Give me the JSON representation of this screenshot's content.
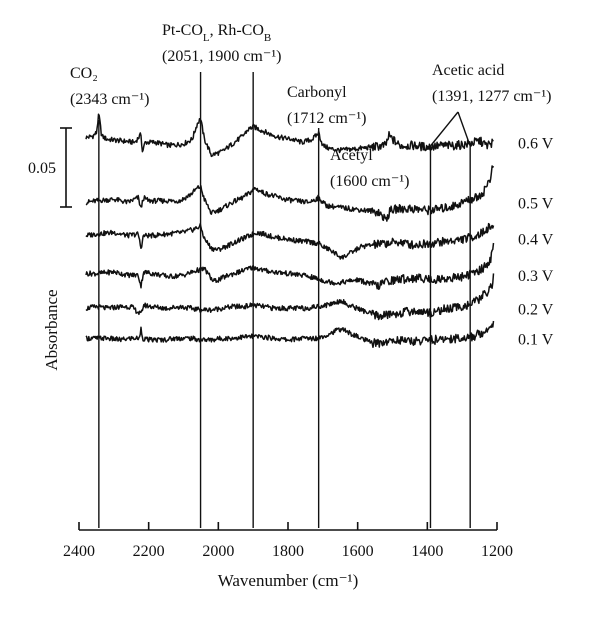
{
  "chart_data": {
    "type": "line",
    "title": "",
    "xlabel": "Wavenumber (cm⁻¹)",
    "ylabel": "Absorbance",
    "xlim": [
      2400,
      1200
    ],
    "x_reversed": true,
    "x_ticks": [
      2400,
      2200,
      2000,
      1800,
      1600,
      1400,
      1200
    ],
    "grid": false,
    "scale_bar": {
      "label": "0.05",
      "value": 0.05
    },
    "reference_lines": [
      2343,
      2051,
      1900,
      1712,
      1391,
      1277
    ],
    "annotations": [
      {
        "id": "co2",
        "lines": [
          "CO₂",
          "(2343 cm⁻¹)"
        ],
        "x": [
          2343
        ]
      },
      {
        "id": "pt-rh-co",
        "lines": [
          "Pt-CO_L, Rh-CO_B",
          "(2051, 1900 cm⁻¹)"
        ],
        "x": [
          2051,
          1900
        ]
      },
      {
        "id": "carbonyl",
        "lines": [
          "Carbonyl",
          "(1712 cm⁻¹)"
        ],
        "x": [
          1712
        ]
      },
      {
        "id": "acetyl",
        "lines": [
          "Acetyl",
          "(1600 cm⁻¹)"
        ],
        "x": [
          1600
        ]
      },
      {
        "id": "acetic-acid",
        "lines": [
          "Acetic acid",
          "(1391, 1277 cm⁻¹)"
        ],
        "x": [
          1391,
          1277
        ]
      }
    ],
    "series": [
      {
        "name": "0.6 V",
        "offset": 0.108,
        "x": [
          2380,
          2360,
          2350,
          2343,
          2335,
          2320,
          2280,
          2240,
          2222,
          2218,
          2210,
          2180,
          2140,
          2100,
          2075,
          2060,
          2051,
          2040,
          2020,
          1990,
          1960,
          1930,
          1915,
          1900,
          1880,
          1850,
          1820,
          1790,
          1760,
          1730,
          1712,
          1700,
          1680,
          1650,
          1600,
          1560,
          1520,
          1510,
          1480,
          1440,
          1400,
          1360,
          1320,
          1280,
          1250,
          1230,
          1210
        ],
        "y": [
          0.003,
          0.004,
          0.006,
          0.018,
          0.004,
          0.002,
          0.001,
          0.0,
          0.005,
          -0.006,
          0.0,
          0.0,
          -0.002,
          -0.001,
          0.002,
          0.012,
          0.015,
          0.002,
          -0.008,
          -0.006,
          -0.001,
          0.004,
          0.008,
          0.01,
          0.008,
          0.005,
          0.003,
          0.002,
          0.0,
          0.002,
          0.006,
          -0.002,
          -0.004,
          -0.005,
          -0.004,
          -0.003,
          -0.002,
          0.004,
          -0.002,
          -0.002,
          -0.003,
          -0.002,
          -0.002,
          -0.001,
          0.001,
          -0.002,
          0.0
        ]
      },
      {
        "name": "0.5 V",
        "offset": 0.07,
        "x": [
          2380,
          2350,
          2300,
          2260,
          2230,
          2222,
          2215,
          2200,
          2160,
          2110,
          2080,
          2060,
          2051,
          2040,
          2020,
          1990,
          1960,
          1930,
          1910,
          1895,
          1870,
          1840,
          1810,
          1780,
          1740,
          1712,
          1690,
          1660,
          1620,
          1580,
          1540,
          1520,
          1505,
          1480,
          1440,
          1400,
          1360,
          1320,
          1290,
          1260,
          1240,
          1220,
          1210
        ],
        "y": [
          0.0,
          0.001,
          0.002,
          0.0,
          0.003,
          -0.004,
          0.003,
          0.001,
          0.001,
          0.001,
          0.005,
          0.009,
          0.01,
          0.002,
          -0.007,
          -0.004,
          0.0,
          0.003,
          0.006,
          0.009,
          0.006,
          0.004,
          0.002,
          0.001,
          0.0,
          0.003,
          -0.002,
          -0.003,
          -0.004,
          -0.005,
          -0.006,
          -0.011,
          -0.005,
          -0.004,
          -0.004,
          -0.005,
          -0.004,
          -0.002,
          0.001,
          0.003,
          0.006,
          0.015,
          0.024
        ]
      },
      {
        "name": "0.4 V",
        "offset": 0.047,
        "x": [
          2380,
          2350,
          2300,
          2260,
          2230,
          2222,
          2215,
          2190,
          2150,
          2100,
          2070,
          2051,
          2040,
          2020,
          2000,
          1970,
          1940,
          1910,
          1890,
          1870,
          1840,
          1810,
          1780,
          1740,
          1712,
          1700,
          1680,
          1660,
          1645,
          1620,
          1590,
          1560,
          1520,
          1480,
          1440,
          1400,
          1360,
          1320,
          1290,
          1260,
          1240,
          1225,
          1210
        ],
        "y": [
          0.002,
          0.003,
          0.004,
          0.002,
          0.003,
          -0.006,
          0.002,
          0.002,
          0.003,
          0.004,
          0.006,
          0.008,
          0.0,
          -0.006,
          -0.007,
          -0.004,
          -0.001,
          0.002,
          0.004,
          0.003,
          0.001,
          0.0,
          -0.001,
          -0.002,
          -0.003,
          -0.005,
          -0.007,
          -0.01,
          -0.012,
          -0.009,
          -0.005,
          -0.004,
          -0.003,
          -0.002,
          -0.004,
          -0.003,
          -0.002,
          -0.001,
          0.0,
          0.002,
          0.004,
          0.007,
          0.008
        ]
      },
      {
        "name": "0.3 V",
        "offset": 0.024,
        "x": [
          2380,
          2350,
          2300,
          2260,
          2230,
          2222,
          2215,
          2190,
          2140,
          2100,
          2060,
          2040,
          2030,
          2015,
          2000,
          1970,
          1940,
          1900,
          1870,
          1840,
          1800,
          1760,
          1720,
          1690,
          1660,
          1630,
          1600,
          1570,
          1540,
          1520,
          1490,
          1450,
          1410,
          1380,
          1340,
          1300,
          1270,
          1250,
          1230,
          1215,
          1210
        ],
        "y": [
          0.001,
          0.001,
          0.002,
          0.0,
          0.0,
          -0.007,
          0.002,
          0.001,
          -0.001,
          0.0,
          0.003,
          0.004,
          0.001,
          -0.004,
          -0.003,
          0.0,
          0.002,
          0.005,
          0.003,
          0.002,
          0.001,
          0.0,
          -0.002,
          -0.004,
          -0.005,
          -0.004,
          -0.003,
          -0.005,
          -0.007,
          -0.004,
          -0.003,
          -0.002,
          -0.002,
          -0.003,
          -0.002,
          -0.001,
          0.001,
          0.003,
          0.006,
          0.012,
          0.018
        ]
      },
      {
        "name": "0.2 V",
        "offset": 0.003,
        "x": [
          2380,
          2350,
          2320,
          2280,
          2250,
          2222,
          2215,
          2190,
          2150,
          2110,
          2080,
          2050,
          2020,
          1990,
          1960,
          1930,
          1900,
          1870,
          1840,
          1810,
          1780,
          1750,
          1720,
          1690,
          1660,
          1645,
          1630,
          1600,
          1570,
          1540,
          1510,
          1480,
          1450,
          1420,
          1390,
          1360,
          1330,
          1300,
          1270,
          1250,
          1230,
          1215,
          1210
        ],
        "y": [
          0.0,
          0.001,
          0.0,
          0.001,
          0.001,
          -0.004,
          0.002,
          0.001,
          0.0,
          0.001,
          0.0,
          -0.001,
          -0.001,
          0.0,
          0.001,
          0.001,
          0.002,
          0.001,
          0.0,
          0.0,
          0.0,
          0.0,
          0.001,
          0.002,
          0.004,
          0.005,
          0.002,
          0.0,
          -0.003,
          -0.005,
          -0.004,
          -0.003,
          -0.002,
          -0.002,
          -0.003,
          -0.001,
          0.0,
          0.001,
          0.003,
          0.006,
          0.01,
          0.014,
          0.02
        ]
      },
      {
        "name": "0.1 V",
        "offset": -0.016,
        "x": [
          2380,
          2350,
          2320,
          2280,
          2250,
          2225,
          2222,
          2218,
          2200,
          2160,
          2120,
          2080,
          2050,
          2020,
          1990,
          1960,
          1920,
          1880,
          1840,
          1800,
          1760,
          1720,
          1690,
          1660,
          1645,
          1630,
          1610,
          1580,
          1560,
          1540,
          1510,
          1480,
          1440,
          1400,
          1360,
          1330,
          1300,
          1270,
          1250,
          1230,
          1220,
          1210
        ],
        "y": [
          0.0,
          0.0,
          0.0,
          -0.001,
          0.0,
          0.0,
          0.008,
          0.0,
          -0.001,
          -0.001,
          0.0,
          0.0,
          -0.001,
          -0.001,
          0.0,
          0.0,
          0.001,
          0.001,
          0.0,
          -0.001,
          0.0,
          0.0,
          0.002,
          0.005,
          0.006,
          0.004,
          0.002,
          -0.001,
          -0.003,
          -0.003,
          -0.002,
          -0.001,
          -0.002,
          -0.001,
          -0.001,
          0.0,
          0.0,
          0.001,
          0.003,
          0.005,
          0.008,
          0.01
        ]
      }
    ]
  }
}
